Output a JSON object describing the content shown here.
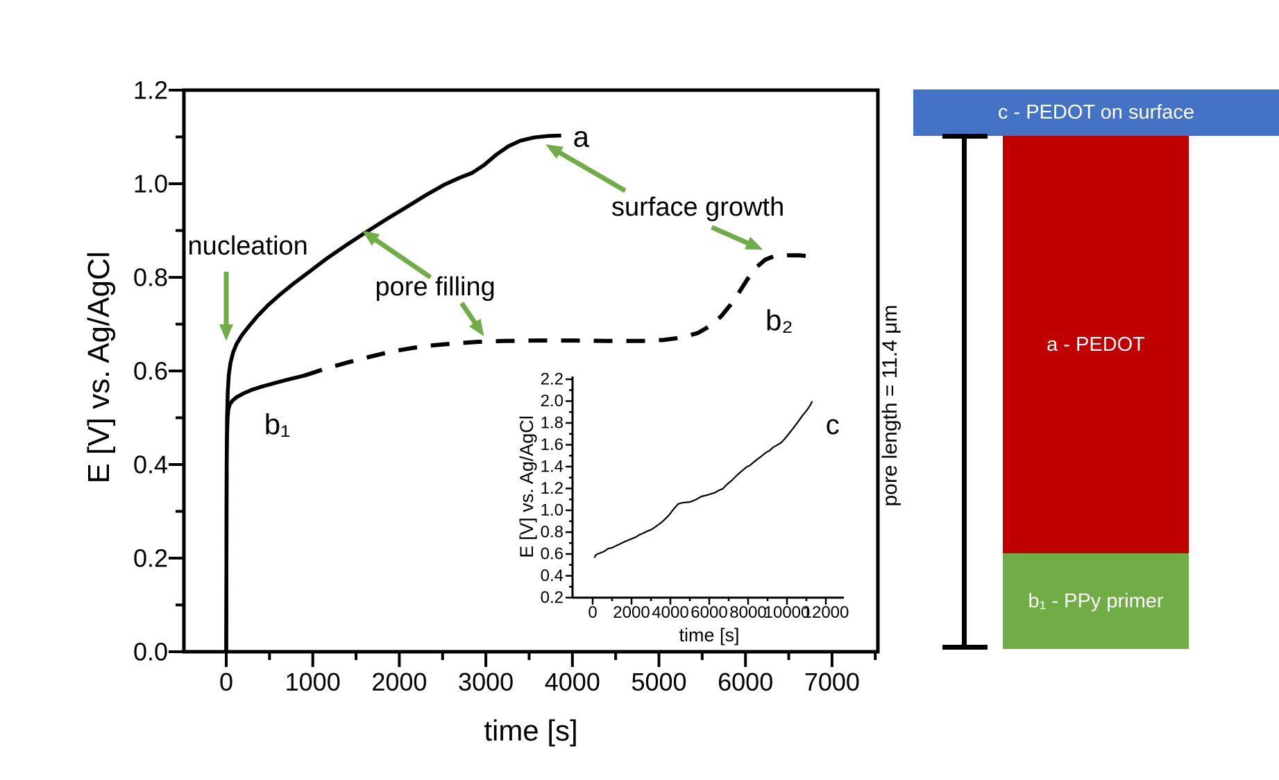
{
  "page": {
    "background": "#ffffff"
  },
  "chart_data": [
    {
      "id": "main",
      "type": "line",
      "title": "",
      "xlabel": "time [s]",
      "ylabel": "E [V] vs. Ag/AgCl",
      "xlim": [
        -500,
        7530
      ],
      "ylim": [
        0.0,
        1.2
      ],
      "grid": false,
      "xtick_values": [
        0,
        1000,
        2000,
        3000,
        4000,
        5000,
        6000,
        7000
      ],
      "xtick_labels": [
        "0",
        "1000",
        "2000",
        "3000",
        "4000",
        "5000",
        "6000",
        "7000"
      ],
      "xminor_values": [
        500,
        1500,
        2500,
        3500,
        4500,
        5500,
        6500,
        7500
      ],
      "ytick_values": [
        0.0,
        0.2,
        0.4,
        0.6,
        0.8,
        1.0,
        1.2
      ],
      "ytick_labels": [
        "0.0",
        "0.2",
        "0.4",
        "0.6",
        "0.8",
        "1.0",
        "1.2"
      ],
      "yminor_values": [
        0.1,
        0.3,
        0.5,
        0.7,
        0.9,
        1.1
      ],
      "line_color": "#000000",
      "series": [
        {
          "name": "a",
          "label": "a",
          "style": "solid",
          "points": [
            [
              0,
              0
            ],
            [
              3,
              0.3
            ],
            [
              6,
              0.42
            ],
            [
              10,
              0.5
            ],
            [
              18,
              0.556
            ],
            [
              30,
              0.592
            ],
            [
              50,
              0.618
            ],
            [
              80,
              0.64
            ],
            [
              120,
              0.658
            ],
            [
              180,
              0.676
            ],
            [
              260,
              0.695
            ],
            [
              360,
              0.717
            ],
            [
              480,
              0.74
            ],
            [
              620,
              0.763
            ],
            [
              780,
              0.787
            ],
            [
              960,
              0.812
            ],
            [
              1160,
              0.84
            ],
            [
              1380,
              0.868
            ],
            [
              1620,
              0.897
            ],
            [
              1860,
              0.925
            ],
            [
              2100,
              0.952
            ],
            [
              2320,
              0.977
            ],
            [
              2520,
              0.998
            ],
            [
              2700,
              1.013
            ],
            [
              2840,
              1.023
            ],
            [
              2980,
              1.04
            ],
            [
              3120,
              1.062
            ],
            [
              3260,
              1.08
            ],
            [
              3400,
              1.092
            ],
            [
              3560,
              1.099
            ],
            [
              3720,
              1.102
            ],
            [
              3870,
              1.103
            ]
          ]
        },
        {
          "name": "b-initial",
          "label": "b1",
          "style": "solid",
          "points": [
            [
              0,
              0
            ],
            [
              3,
              0.28
            ],
            [
              6,
              0.4
            ],
            [
              10,
              0.465
            ],
            [
              16,
              0.5
            ],
            [
              25,
              0.518
            ],
            [
              40,
              0.528
            ],
            [
              70,
              0.536
            ],
            [
              120,
              0.544
            ],
            [
              200,
              0.552
            ],
            [
              300,
              0.56
            ],
            [
              420,
              0.567
            ],
            [
              560,
              0.574
            ],
            [
              720,
              0.582
            ],
            [
              900,
              0.59
            ]
          ]
        },
        {
          "name": "b-dashed",
          "label": "b2",
          "style": "dashed",
          "points": [
            [
              900,
              0.59
            ],
            [
              1150,
              0.605
            ],
            [
              1400,
              0.618
            ],
            [
              1650,
              0.63
            ],
            [
              1900,
              0.641
            ],
            [
              2150,
              0.649
            ],
            [
              2400,
              0.655
            ],
            [
              2650,
              0.659
            ],
            [
              2900,
              0.662
            ],
            [
              3200,
              0.664
            ],
            [
              3600,
              0.665
            ],
            [
              4000,
              0.665
            ],
            [
              4400,
              0.664
            ],
            [
              4800,
              0.664
            ],
            [
              5050,
              0.666
            ],
            [
              5250,
              0.671
            ],
            [
              5450,
              0.681
            ],
            [
              5600,
              0.697
            ],
            [
              5720,
              0.717
            ],
            [
              5830,
              0.742
            ],
            [
              5930,
              0.769
            ],
            [
              6030,
              0.798
            ],
            [
              6130,
              0.822
            ],
            [
              6230,
              0.838
            ],
            [
              6330,
              0.845
            ],
            [
              6480,
              0.847
            ],
            [
              6620,
              0.847
            ],
            [
              6750,
              0.845
            ]
          ]
        }
      ],
      "curve_labels": [
        {
          "text": "a",
          "t": 4100,
          "E": 1.101
        },
        {
          "text": "b₁",
          "t": 590,
          "E": 0.486
        },
        {
          "text": "b₂",
          "t": 6390,
          "E": 0.708
        }
      ],
      "annotations": [
        {
          "text": "nucleation",
          "t": 250,
          "E": 0.867,
          "arrows": [
            {
              "from": [
                0,
                0.812
              ],
              "to": [
                0,
                0.664
              ]
            }
          ]
        },
        {
          "text": "pore filling",
          "t": 2415,
          "E": 0.779,
          "arrows": [
            {
              "from": [
                2360,
                0.8
              ],
              "to": [
                1570,
                0.9
              ]
            },
            {
              "from": [
                2720,
                0.745
              ],
              "to": [
                2980,
                0.674
              ]
            }
          ]
        },
        {
          "text": "surface growth",
          "t": 5450,
          "E": 0.95,
          "arrows": [
            {
              "from": [
                4610,
                0.985
              ],
              "to": [
                3690,
                1.084
              ]
            },
            {
              "from": [
                5610,
                0.907
              ],
              "to": [
                6200,
                0.859
              ]
            }
          ]
        }
      ],
      "annotation_color": "#70AD47"
    },
    {
      "id": "inset",
      "type": "line",
      "title": "",
      "xlabel": "time [s]",
      "ylabel": "E [V] vs. Ag/AgCl",
      "xlim": [
        -1000,
        12900
      ],
      "ylim": [
        0.2,
        2.225
      ],
      "grid": false,
      "xtick_values": [
        0,
        2000,
        4000,
        6000,
        8000,
        10000,
        12000
      ],
      "xtick_labels": [
        "0",
        "2000",
        "4000",
        "6000",
        "8000",
        "10000",
        "12000"
      ],
      "xminor_values": [
        1000,
        3000,
        5000,
        7000,
        9000,
        11000
      ],
      "ytick_values": [
        0.2,
        0.4,
        0.6,
        0.8,
        1.0,
        1.2,
        1.4,
        1.6,
        1.8,
        2.0,
        2.2
      ],
      "ytick_labels": [
        "0.2",
        "0.4",
        "0.6",
        "0.8",
        "1.0",
        "1.2",
        "1.4",
        "1.6",
        "1.8",
        "2.0",
        "2.2"
      ],
      "yminor_values": [
        0.3,
        0.5,
        0.7,
        0.9,
        1.1,
        1.3,
        1.5,
        1.7,
        1.9,
        2.1
      ],
      "line_color": "#000000",
      "series": [
        {
          "name": "c",
          "label": "c",
          "style": "solid",
          "points": [
            [
              100,
              0.565
            ],
            [
              150,
              0.588
            ],
            [
              250,
              0.6
            ],
            [
              400,
              0.612
            ],
            [
              600,
              0.628
            ],
            [
              800,
              0.645
            ],
            [
              1000,
              0.662
            ],
            [
              1200,
              0.674
            ],
            [
              1400,
              0.688
            ],
            [
              1600,
              0.703
            ],
            [
              1800,
              0.72
            ],
            [
              2000,
              0.737
            ],
            [
              2200,
              0.752
            ],
            [
              2400,
              0.77
            ],
            [
              2600,
              0.788
            ],
            [
              2800,
              0.806
            ],
            [
              3000,
              0.822
            ],
            [
              3200,
              0.845
            ],
            [
              3400,
              0.868
            ],
            [
              3600,
              0.895
            ],
            [
              3800,
              0.925
            ],
            [
              3950,
              0.955
            ],
            [
              4100,
              0.995
            ],
            [
              4250,
              1.03
            ],
            [
              4400,
              1.052
            ],
            [
              4600,
              1.063
            ],
            [
              4800,
              1.072
            ],
            [
              5000,
              1.082
            ],
            [
              5300,
              1.1
            ],
            [
              5600,
              1.122
            ],
            [
              5900,
              1.145
            ],
            [
              6100,
              1.158
            ],
            [
              6300,
              1.168
            ],
            [
              6500,
              1.18
            ],
            [
              6700,
              1.2
            ],
            [
              6900,
              1.235
            ],
            [
              7100,
              1.27
            ],
            [
              7300,
              1.3
            ],
            [
              7500,
              1.33
            ],
            [
              7700,
              1.362
            ],
            [
              7900,
              1.39
            ],
            [
              8100,
              1.418
            ],
            [
              8300,
              1.445
            ],
            [
              8500,
              1.472
            ],
            [
              8700,
              1.5
            ],
            [
              8900,
              1.527
            ],
            [
              9100,
              1.552
            ],
            [
              9300,
              1.578
            ],
            [
              9500,
              1.6
            ],
            [
              9700,
              1.625
            ],
            [
              9900,
              1.66
            ],
            [
              10100,
              1.7
            ],
            [
              10300,
              1.745
            ],
            [
              10500,
              1.79
            ],
            [
              10700,
              1.838
            ],
            [
              10900,
              1.888
            ],
            [
              11050,
              1.925
            ],
            [
              11200,
              1.963
            ],
            [
              11300,
              1.998
            ]
          ]
        }
      ],
      "curve_labels": [
        {
          "text": "c",
          "t": 12350,
          "E": 1.78
        }
      ]
    }
  ],
  "schematic": {
    "surface_bar": {
      "label": "c - PEDOT on surface",
      "color": "#4472C4",
      "text_color": "#ffffff"
    },
    "pore_bar_top": {
      "label": "a - PEDOT",
      "color": "#C00000",
      "text_color": "#ffffff"
    },
    "pore_bar_bottom": {
      "label": "b₁ - PPy primer",
      "color": "#70AD47",
      "text_color": "#ffffff"
    },
    "measure_label": "pore length = 11.4 μm"
  }
}
